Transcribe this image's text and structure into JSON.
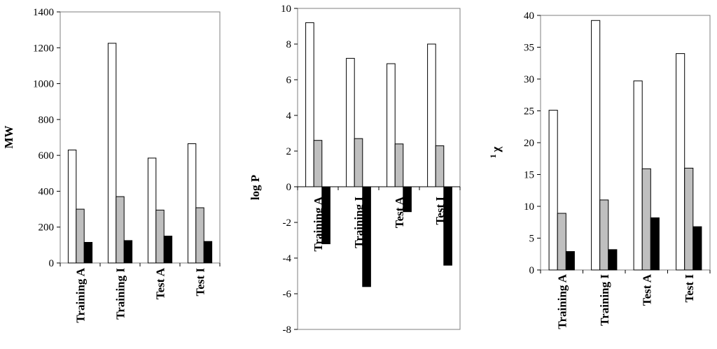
{
  "chart_data": [
    {
      "type": "bar",
      "ylabel": "MW",
      "categories": [
        "Training A",
        "Training I",
        "Test A",
        "Test I"
      ],
      "ylim": [
        0,
        1400
      ],
      "yticks": [
        0,
        200,
        400,
        600,
        800,
        1000,
        1200,
        1400
      ],
      "series": [
        {
          "values": [
            630,
            1225,
            585,
            665
          ],
          "color": "#ffffff"
        },
        {
          "values": [
            300,
            370,
            295,
            308
          ],
          "color": "#bfbfbf"
        },
        {
          "values": [
            115,
            125,
            150,
            120
          ],
          "color": "#000000"
        }
      ]
    },
    {
      "type": "bar",
      "ylabel": "log P",
      "categories": [
        "Training A",
        "Training I",
        "Test A",
        "Test I"
      ],
      "ylim": [
        -8,
        10
      ],
      "yticks": [
        -8,
        -6,
        -4,
        -2,
        0,
        2,
        4,
        6,
        8,
        10
      ],
      "series": [
        {
          "values": [
            9.2,
            7.2,
            6.9,
            8.0
          ],
          "color": "#ffffff"
        },
        {
          "values": [
            2.6,
            2.7,
            2.4,
            2.3
          ],
          "color": "#bfbfbf"
        },
        {
          "values": [
            -3.2,
            -5.6,
            -1.4,
            -4.4
          ],
          "color": "#000000"
        }
      ]
    },
    {
      "type": "bar",
      "ylabel": "χ",
      "ylabel_superscript": "1",
      "categories": [
        "Training A",
        "Training I",
        "Test A",
        "Test I"
      ],
      "ylim": [
        0,
        40
      ],
      "yticks": [
        0,
        5,
        10,
        15,
        20,
        25,
        30,
        35,
        40
      ],
      "series": [
        {
          "values": [
            25.1,
            39.2,
            29.7,
            34.0
          ],
          "color": "#ffffff"
        },
        {
          "values": [
            8.9,
            11.0,
            15.9,
            16.0
          ],
          "color": "#bfbfbf"
        },
        {
          "values": [
            2.9,
            3.2,
            8.2,
            6.8
          ],
          "color": "#000000"
        }
      ]
    }
  ]
}
